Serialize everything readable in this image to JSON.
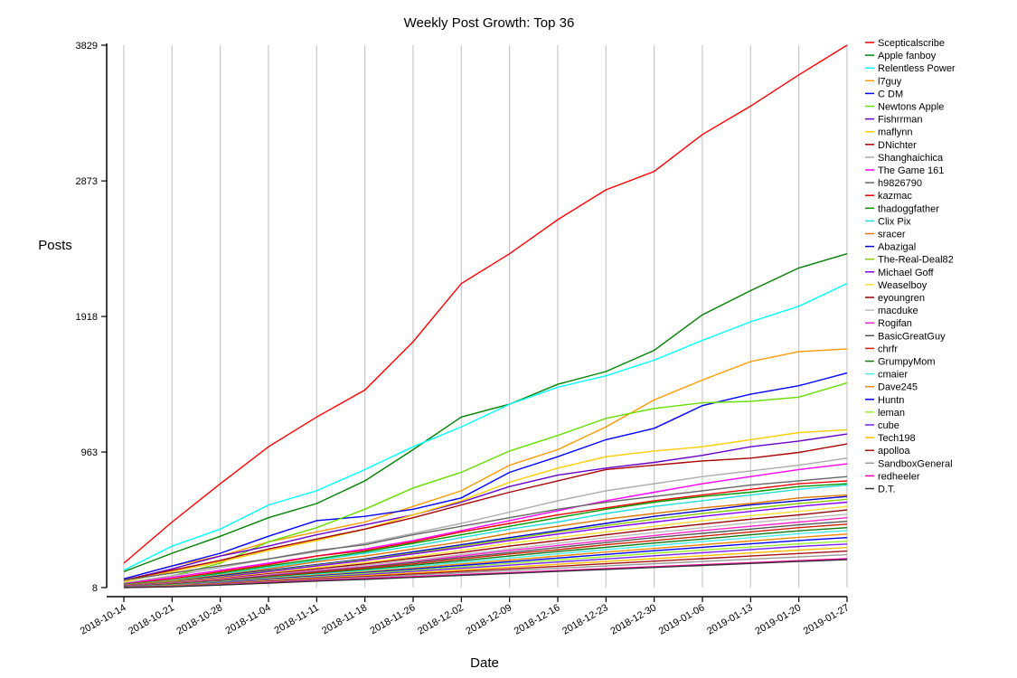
{
  "chart_data": {
    "type": "line",
    "title": "Weekly Post Growth: Top 36",
    "xlabel": "Date",
    "ylabel": "Posts",
    "x": [
      "2018-10-14",
      "2018-10-21",
      "2018-10-28",
      "2018-11-04",
      "2018-11-11",
      "2018-11-18",
      "2018-11-26",
      "2018-12-02",
      "2018-12-09",
      "2018-12-16",
      "2018-12-23",
      "2018-12-30",
      "2019-01-06",
      "2019-01-13",
      "2019-01-20",
      "2019-01-27"
    ],
    "yticks": [
      8,
      963,
      1918,
      2873,
      3829
    ],
    "ylim": [
      8,
      3829
    ],
    "grid": {
      "x": true,
      "y": false
    },
    "legend_position": "right",
    "series": [
      {
        "name": "Scepticalscribe",
        "color": "#ff0000",
        "values": [
          180,
          470,
          740,
          1000,
          1210,
          1400,
          1740,
          2150,
          2360,
          2600,
          2810,
          2940,
          3200,
          3400,
          3620,
          3829
        ]
      },
      {
        "name": "Apple fanboy",
        "color": "#008000",
        "values": [
          120,
          250,
          370,
          500,
          600,
          760,
          980,
          1210,
          1300,
          1440,
          1530,
          1680,
          1930,
          2100,
          2260,
          2360
        ]
      },
      {
        "name": "Relentless Power",
        "color": "#00ffff",
        "values": [
          130,
          300,
          420,
          590,
          690,
          840,
          1000,
          1140,
          1300,
          1420,
          1500,
          1610,
          1750,
          1880,
          1990,
          2150
        ]
      },
      {
        "name": "l7guy",
        "color": "#ff9900",
        "values": [
          70,
          160,
          230,
          330,
          400,
          470,
          580,
          690,
          870,
          980,
          1140,
          1330,
          1470,
          1600,
          1670,
          1690
        ]
      },
      {
        "name": "C DM",
        "color": "#0000ff",
        "values": [
          70,
          160,
          250,
          370,
          480,
          510,
          560,
          640,
          820,
          930,
          1050,
          1130,
          1290,
          1370,
          1430,
          1520
        ]
      },
      {
        "name": "Newtons Apple",
        "color": "#66dd00",
        "values": [
          40,
          90,
          180,
          330,
          430,
          560,
          710,
          820,
          970,
          1080,
          1200,
          1270,
          1310,
          1320,
          1350,
          1450
        ]
      },
      {
        "name": "Fishrrman",
        "color": "#6600cc",
        "values": [
          60,
          140,
          230,
          300,
          380,
          450,
          520,
          610,
          720,
          800,
          850,
          890,
          940,
          1000,
          1040,
          1090
        ]
      },
      {
        "name": "maflynn",
        "color": "#ffcc00",
        "values": [
          50,
          120,
          190,
          270,
          340,
          420,
          520,
          620,
          750,
          850,
          930,
          970,
          1000,
          1050,
          1100,
          1120
        ]
      },
      {
        "name": "DNichter",
        "color": "#aa0000",
        "values": [
          60,
          130,
          200,
          280,
          350,
          420,
          500,
          590,
          680,
          760,
          840,
          870,
          900,
          920,
          960,
          1020
        ]
      },
      {
        "name": "Shanghaichica",
        "color": "#aaaaaa",
        "values": [
          40,
          90,
          150,
          210,
          260,
          320,
          390,
          460,
          540,
          620,
          690,
          740,
          790,
          830,
          870,
          920
        ]
      },
      {
        "name": "The Game 161",
        "color": "#ff00ff",
        "values": [
          35,
          80,
          130,
          180,
          230,
          280,
          340,
          410,
          480,
          550,
          620,
          680,
          740,
          790,
          840,
          880
        ]
      },
      {
        "name": "h9826790",
        "color": "#666666",
        "values": [
          60,
          110,
          160,
          210,
          270,
          310,
          380,
          440,
          500,
          560,
          610,
          650,
          690,
          730,
          760,
          790
        ]
      },
      {
        "name": "kazmac",
        "color": "#ee0000",
        "values": [
          30,
          70,
          120,
          170,
          230,
          270,
          330,
          400,
          460,
          520,
          570,
          620,
          660,
          700,
          740,
          760
        ]
      },
      {
        "name": "thadoggfather",
        "color": "#009900",
        "values": [
          30,
          60,
          110,
          160,
          210,
          260,
          320,
          380,
          440,
          500,
          560,
          610,
          650,
          680,
          720,
          740
        ]
      },
      {
        "name": "Clix Pix",
        "color": "#22dddd",
        "values": [
          25,
          60,
          100,
          150,
          200,
          250,
          300,
          360,
          420,
          470,
          530,
          580,
          620,
          660,
          700,
          730
        ]
      },
      {
        "name": "sracer",
        "color": "#dd7700",
        "values": [
          25,
          55,
          95,
          140,
          190,
          230,
          280,
          330,
          390,
          440,
          490,
          530,
          570,
          600,
          640,
          660
        ]
      },
      {
        "name": "Abazigal",
        "color": "#0000cc",
        "values": [
          20,
          50,
          90,
          130,
          170,
          210,
          260,
          310,
          360,
          410,
          460,
          510,
          550,
          590,
          620,
          650
        ]
      },
      {
        "name": "The-Real-Deal82",
        "color": "#88cc00",
        "values": [
          20,
          50,
          85,
          125,
          165,
          205,
          250,
          300,
          350,
          400,
          445,
          490,
          530,
          565,
          600,
          630
        ]
      },
      {
        "name": "Michael Goff",
        "color": "#8800ff",
        "values": [
          20,
          45,
          80,
          120,
          160,
          200,
          245,
          290,
          340,
          385,
          430,
          470,
          510,
          545,
          580,
          610
        ]
      },
      {
        "name": "Weaselboy",
        "color": "#ffdd33",
        "values": [
          18,
          42,
          75,
          110,
          150,
          185,
          225,
          270,
          320,
          360,
          400,
          440,
          480,
          515,
          545,
          580
        ]
      },
      {
        "name": "eyoungren",
        "color": "#990000",
        "values": [
          18,
          40,
          70,
          105,
          140,
          175,
          215,
          255,
          300,
          340,
          380,
          420,
          455,
          490,
          520,
          555
        ]
      },
      {
        "name": "macduke",
        "color": "#bbbbbb",
        "values": [
          16,
          38,
          65,
          100,
          130,
          165,
          200,
          240,
          280,
          320,
          360,
          395,
          430,
          465,
          495,
          525
        ]
      },
      {
        "name": "Rogifan",
        "color": "#ff22cc",
        "values": [
          16,
          36,
          62,
          95,
          125,
          155,
          190,
          230,
          270,
          305,
          340,
          375,
          410,
          440,
          470,
          500
        ]
      },
      {
        "name": "BasicGreatGuy",
        "color": "#555555",
        "values": [
          15,
          34,
          58,
          90,
          120,
          150,
          185,
          220,
          255,
          290,
          325,
          360,
          390,
          420,
          450,
          475
        ]
      },
      {
        "name": "chrfr",
        "color": "#cc2200",
        "values": [
          14,
          32,
          55,
          85,
          115,
          145,
          175,
          210,
          245,
          275,
          310,
          340,
          370,
          400,
          430,
          455
        ]
      },
      {
        "name": "GrumpyMom",
        "color": "#117711",
        "values": [
          14,
          30,
          52,
          80,
          108,
          136,
          165,
          198,
          230,
          262,
          292,
          322,
          350,
          380,
          408,
          430
        ]
      },
      {
        "name": "cmaier",
        "color": "#44eeee",
        "values": [
          13,
          28,
          50,
          76,
          102,
          128,
          156,
          186,
          216,
          246,
          276,
          304,
          332,
          360,
          388,
          410
        ]
      },
      {
        "name": "Dave245",
        "color": "#ee8800",
        "values": [
          12,
          26,
          46,
          72,
          96,
          120,
          146,
          174,
          202,
          230,
          258,
          284,
          310,
          336,
          362,
          385
        ]
      },
      {
        "name": "Huntn",
        "color": "#0000ee",
        "values": [
          12,
          25,
          44,
          68,
          90,
          114,
          138,
          164,
          190,
          216,
          242,
          268,
          292,
          316,
          340,
          360
        ]
      },
      {
        "name": "leman",
        "color": "#99ee33",
        "values": [
          11,
          24,
          42,
          64,
          86,
          108,
          130,
          154,
          178,
          202,
          226,
          250,
          272,
          294,
          316,
          335
        ]
      },
      {
        "name": "cube",
        "color": "#7722ee",
        "values": [
          11,
          22,
          40,
          60,
          80,
          100,
          122,
          144,
          166,
          188,
          210,
          232,
          254,
          276,
          298,
          315
        ]
      },
      {
        "name": "Tech198",
        "color": "#ffbb00",
        "values": [
          10,
          20,
          36,
          56,
          74,
          92,
          112,
          132,
          152,
          172,
          192,
          212,
          232,
          252,
          272,
          290
        ]
      },
      {
        "name": "apolloa",
        "color": "#aa1111",
        "values": [
          10,
          18,
          34,
          52,
          70,
          86,
          104,
          122,
          140,
          158,
          176,
          194,
          212,
          230,
          248,
          265
        ]
      },
      {
        "name": "SandboxGeneral",
        "color": "#999999",
        "values": [
          9,
          16,
          30,
          48,
          64,
          80,
          96,
          112,
          128,
          144,
          160,
          176,
          192,
          208,
          224,
          240
        ]
      },
      {
        "name": "redheeler",
        "color": "#ff00aa",
        "values": [
          9,
          15,
          28,
          44,
          58,
          72,
          86,
          100,
          114,
          128,
          142,
          156,
          170,
          184,
          198,
          212
        ]
      },
      {
        "name": "D.T.",
        "color": "#333333",
        "values": [
          8,
          14,
          26,
          40,
          54,
          66,
          80,
          94,
          108,
          122,
          136,
          150,
          164,
          178,
          192,
          205
        ]
      }
    ]
  }
}
